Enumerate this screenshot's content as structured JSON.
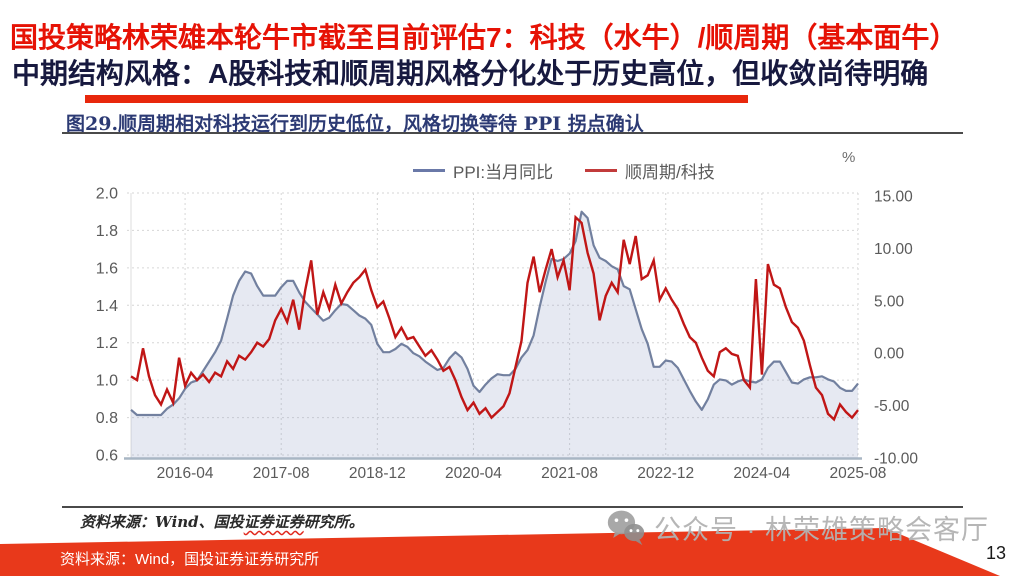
{
  "slide": {
    "title_line1": "国投策略林荣雄本轮牛市截至目前评估7：科技（水牛）/顺周期（基本面牛）",
    "title_line2": "中期结构风格：A股科技和顺周期风格分化处于历史高位，但收敛尚待明确",
    "accent_color": "#e8270c",
    "page_number": "13"
  },
  "figure": {
    "caption": "图29.顺周期相对科技运行到历史低位，风格切换等待 PPI 拐点确认",
    "legend": [
      {
        "label": "PPI:当月同比",
        "color": "#6a79a8"
      },
      {
        "label": "顺周期/科技",
        "color": "#c23b3b"
      }
    ],
    "unit_label": "%",
    "source_prefix": "资料来源：Wind、国投",
    "source_wavy": "证券证券",
    "source_suffix": "研究所。"
  },
  "chart_data": {
    "type": "line",
    "x_start": "2015-07",
    "x_end": "2025-08",
    "x_interval": "monthly",
    "x_tick_labels": [
      "2016-04",
      "2017-08",
      "2018-12",
      "2020-04",
      "2021-08",
      "2022-12",
      "2024-04",
      "2025-08"
    ],
    "x_tick_indices": [
      9,
      25,
      41,
      57,
      73,
      89,
      105,
      121
    ],
    "left_axis": {
      "min": 0.6,
      "max": 2.0,
      "ticks": [
        2.0,
        1.8,
        1.6,
        1.4,
        1.2,
        1.0,
        0.8,
        0.6
      ]
    },
    "right_axis": {
      "min": -10,
      "max": 15,
      "unit": "%",
      "ticks": [
        15.0,
        10.0,
        5.0,
        0.0,
        -5.0,
        -10.0
      ]
    },
    "grid": true,
    "legend_position": "top",
    "series": [
      {
        "name": "PPI:当月同比",
        "axis": "right",
        "color": "#72809f",
        "fill": "rgba(140,155,195,0.22)",
        "values": [
          -5.4,
          -5.9,
          -5.9,
          -5.9,
          -5.9,
          -5.9,
          -5.3,
          -4.9,
          -4.3,
          -3.4,
          -2.8,
          -2.6,
          -1.7,
          -0.8,
          0.1,
          1.2,
          3.3,
          5.5,
          6.9,
          7.8,
          7.6,
          6.4,
          5.5,
          5.5,
          5.5,
          6.3,
          6.9,
          6.9,
          5.8,
          4.9,
          4.3,
          3.7,
          3.1,
          3.4,
          4.1,
          4.7,
          4.6,
          4.1,
          3.6,
          3.3,
          2.7,
          0.9,
          0.1,
          0.1,
          0.4,
          0.9,
          0.6,
          0.0,
          -0.3,
          -0.8,
          -1.2,
          -1.6,
          -1.4,
          -0.5,
          0.1,
          -0.4,
          -1.5,
          -3.1,
          -3.7,
          -3.0,
          -2.4,
          -2.0,
          -2.1,
          -2.1,
          -1.5,
          -0.4,
          0.3,
          1.7,
          4.4,
          6.8,
          9.0,
          8.8,
          9.0,
          9.5,
          10.7,
          13.5,
          12.9,
          10.3,
          9.1,
          8.8,
          8.3,
          8.0,
          6.4,
          6.1,
          4.2,
          2.3,
          0.9,
          -1.3,
          -1.3,
          -0.7,
          -0.8,
          -1.4,
          -2.5,
          -3.6,
          -4.6,
          -5.4,
          -4.4,
          -3.0,
          -2.5,
          -2.6,
          -3.0,
          -2.7,
          -2.5,
          -2.7,
          -2.8,
          -2.5,
          -1.4,
          -0.8,
          -0.8,
          -1.8,
          -2.8,
          -2.9,
          -2.5,
          -2.3,
          -2.3,
          -2.2,
          -2.5,
          -2.7,
          -3.3,
          -3.6,
          -3.6,
          -2.9
        ]
      },
      {
        "name": "顺周期/科技",
        "axis": "left",
        "color": "#c01616",
        "values": [
          1.02,
          1.0,
          1.17,
          1.02,
          0.92,
          0.87,
          0.95,
          0.88,
          1.12,
          0.97,
          1.04,
          1.0,
          1.03,
          0.99,
          1.04,
          1.02,
          1.1,
          1.06,
          1.13,
          1.11,
          1.15,
          1.2,
          1.18,
          1.22,
          1.32,
          1.38,
          1.31,
          1.43,
          1.27,
          1.48,
          1.64,
          1.35,
          1.47,
          1.38,
          1.51,
          1.41,
          1.47,
          1.52,
          1.55,
          1.59,
          1.48,
          1.39,
          1.42,
          1.33,
          1.23,
          1.28,
          1.22,
          1.23,
          1.18,
          1.13,
          1.16,
          1.11,
          1.05,
          1.07,
          1.0,
          0.91,
          0.84,
          0.88,
          0.82,
          0.85,
          0.8,
          0.83,
          0.86,
          0.93,
          1.07,
          1.21,
          1.52,
          1.66,
          1.47,
          1.59,
          1.7,
          1.55,
          1.64,
          1.48,
          1.87,
          1.84,
          1.68,
          1.57,
          1.32,
          1.45,
          1.52,
          1.47,
          1.75,
          1.62,
          1.77,
          1.54,
          1.56,
          1.64,
          1.43,
          1.49,
          1.43,
          1.38,
          1.3,
          1.23,
          1.2,
          1.12,
          1.05,
          1.02,
          1.15,
          1.17,
          1.14,
          1.13,
          1.0,
          0.96,
          1.54,
          1.03,
          1.62,
          1.51,
          1.49,
          1.39,
          1.31,
          1.28,
          1.21,
          1.08,
          0.96,
          0.92,
          0.82,
          0.79,
          0.87,
          0.83,
          0.8,
          0.84
        ]
      }
    ]
  },
  "watermark": {
    "text": "公众号 · 林荣雄策略会客厅"
  },
  "footer": {
    "source_text": "资料来源：Wind，国投证券证券研究所"
  }
}
